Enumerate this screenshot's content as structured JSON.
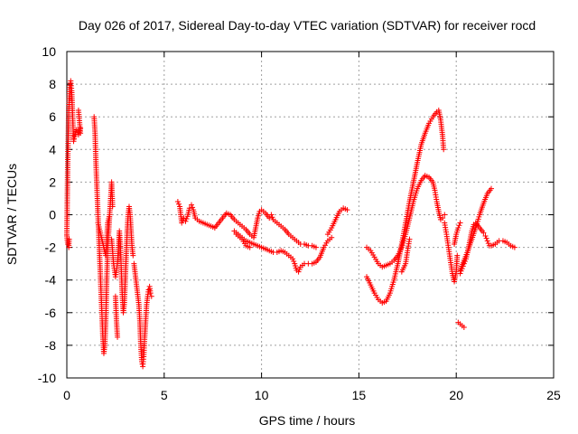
{
  "chart_data": {
    "type": "scatter",
    "title": "Day 026 of 2017, Sidereal Day-to-day VTEC variation (SDTVAR) for receiver rocd",
    "xlabel": "GPS time / hours",
    "ylabel": "SDTVAR / TECUs",
    "xlim": [
      0,
      25
    ],
    "ylim": [
      -10,
      10
    ],
    "xticks": [
      0,
      5,
      10,
      15,
      20,
      25
    ],
    "yticks": [
      -10,
      -8,
      -6,
      -4,
      -2,
      0,
      2,
      4,
      6,
      8,
      10
    ],
    "grid": true,
    "marker": "+",
    "color": "#ff0000",
    "series": [
      {
        "name": "SDTVAR",
        "segments": [
          [
            [
              0.0,
              -1.2
            ],
            [
              0.05,
              3.5
            ],
            [
              0.1,
              6.5
            ],
            [
              0.15,
              7.8
            ],
            [
              0.2,
              8.2
            ],
            [
              0.25,
              7.6
            ],
            [
              0.3,
              6.0
            ],
            [
              0.35,
              4.5
            ],
            [
              0.4,
              4.8
            ],
            [
              0.5,
              5.2
            ],
            [
              0.6,
              4.9
            ],
            [
              0.7,
              5.3
            ]
          ],
          [
            [
              0.0,
              -1.3
            ],
            [
              0.05,
              -1.8
            ],
            [
              0.1,
              -2.0
            ],
            [
              0.12,
              -1.5
            ]
          ],
          [
            [
              0.6,
              6.4
            ],
            [
              0.7,
              5.0
            ]
          ],
          [
            [
              1.4,
              6.0
            ],
            [
              1.45,
              5.0
            ],
            [
              1.5,
              3.0
            ],
            [
              1.55,
              1.5
            ],
            [
              1.6,
              0.0
            ],
            [
              1.65,
              -1.5
            ],
            [
              1.7,
              -3.0
            ],
            [
              1.75,
              -4.5
            ],
            [
              1.8,
              -6.0
            ],
            [
              1.85,
              -7.5
            ],
            [
              1.9,
              -8.5
            ],
            [
              1.95,
              -8.0
            ],
            [
              2.0,
              -6.5
            ],
            [
              2.05,
              -4.0
            ],
            [
              2.1,
              -2.0
            ],
            [
              2.15,
              -1.0
            ],
            [
              2.2,
              0.0
            ],
            [
              2.25,
              1.0
            ],
            [
              2.3,
              2.0
            ],
            [
              2.35,
              0.5
            ]
          ],
          [
            [
              1.6,
              -0.5
            ],
            [
              1.7,
              -1.0
            ],
            [
              1.8,
              -1.5
            ],
            [
              1.9,
              -2.0
            ],
            [
              2.0,
              -2.5
            ],
            [
              2.05,
              -1.5
            ],
            [
              2.1,
              -0.5
            ],
            [
              2.2,
              0.0
            ]
          ],
          [
            [
              2.3,
              -1.5
            ],
            [
              2.4,
              -3.0
            ],
            [
              2.5,
              -3.8
            ],
            [
              2.6,
              -3.0
            ],
            [
              2.65,
              -2.0
            ],
            [
              2.7,
              -1.0
            ],
            [
              2.75,
              -1.8
            ],
            [
              2.8,
              -3.5
            ],
            [
              2.85,
              -5.0
            ],
            [
              2.9,
              -6.0
            ],
            [
              2.95,
              -5.5
            ],
            [
              3.0,
              -4.0
            ],
            [
              3.05,
              -2.5
            ],
            [
              3.1,
              -1.0
            ],
            [
              3.15,
              0.0
            ],
            [
              3.2,
              0.5
            ],
            [
              3.25,
              0.0
            ],
            [
              3.3,
              -1.0
            ],
            [
              3.35,
              -2.0
            ],
            [
              3.4,
              -2.5
            ]
          ],
          [
            [
              2.5,
              -5.0
            ],
            [
              2.55,
              -6.5
            ],
            [
              2.6,
              -7.5
            ]
          ],
          [
            [
              3.45,
              -3.0
            ],
            [
              3.5,
              -3.5
            ],
            [
              3.55,
              -4.0
            ],
            [
              3.6,
              -4.5
            ],
            [
              3.65,
              -5.0
            ],
            [
              3.7,
              -5.5
            ],
            [
              3.75,
              -6.5
            ],
            [
              3.8,
              -8.0
            ],
            [
              3.85,
              -9.0
            ],
            [
              3.9,
              -9.3
            ],
            [
              3.95,
              -8.7
            ],
            [
              4.0,
              -7.5
            ],
            [
              4.05,
              -6.5
            ],
            [
              4.1,
              -5.5
            ],
            [
              4.15,
              -5.0
            ],
            [
              4.2,
              -4.6
            ],
            [
              4.25,
              -4.4
            ],
            [
              4.3,
              -4.8
            ],
            [
              4.35,
              -5.0
            ]
          ],
          [
            [
              5.7,
              0.8
            ],
            [
              5.8,
              0.5
            ],
            [
              5.9,
              -0.5
            ],
            [
              6.0,
              -0.2
            ],
            [
              6.1,
              -0.4
            ],
            [
              6.2,
              -0.1
            ],
            [
              6.3,
              0.4
            ],
            [
              6.4,
              0.6
            ],
            [
              6.5,
              0.3
            ],
            [
              6.6,
              -0.2
            ],
            [
              6.8,
              -0.4
            ],
            [
              7.0,
              -0.5
            ],
            [
              7.2,
              -0.6
            ],
            [
              7.4,
              -0.7
            ],
            [
              7.6,
              -0.8
            ],
            [
              7.8,
              -0.5
            ],
            [
              8.0,
              -0.2
            ],
            [
              8.2,
              0.1
            ],
            [
              8.4,
              0.0
            ],
            [
              8.6,
              -0.3
            ],
            [
              8.8,
              -0.5
            ],
            [
              9.0,
              -0.7
            ],
            [
              9.2,
              -0.9
            ],
            [
              9.4,
              -1.2
            ],
            [
              9.6,
              -1.4
            ],
            [
              9.7,
              -0.8
            ],
            [
              9.8,
              -0.2
            ],
            [
              9.9,
              0.2
            ],
            [
              10.0,
              0.3
            ],
            [
              10.2,
              0.1
            ],
            [
              10.4,
              -0.2
            ],
            [
              10.5,
              0.0
            ],
            [
              10.6,
              -0.3
            ],
            [
              10.8,
              -0.5
            ],
            [
              11.0,
              -0.7
            ],
            [
              11.2,
              -0.9
            ],
            [
              11.4,
              -1.2
            ],
            [
              11.6,
              -1.4
            ],
            [
              11.8,
              -1.6
            ],
            [
              12.0,
              -1.8
            ],
            [
              12.2,
              -1.8
            ],
            [
              12.4,
              -1.9
            ],
            [
              12.6,
              -1.9
            ],
            [
              12.8,
              -2.0
            ]
          ],
          [
            [
              8.6,
              -1.0
            ],
            [
              8.8,
              -1.2
            ],
            [
              9.0,
              -1.4
            ],
            [
              9.2,
              -1.6
            ],
            [
              9.4,
              -1.7
            ],
            [
              9.6,
              -1.8
            ],
            [
              9.8,
              -1.9
            ],
            [
              10.0,
              -2.0
            ],
            [
              10.2,
              -2.1
            ],
            [
              10.4,
              -2.2
            ],
            [
              10.6,
              -2.3
            ],
            [
              10.8,
              -2.3
            ],
            [
              11.0,
              -2.2
            ],
            [
              11.2,
              -2.3
            ],
            [
              11.4,
              -2.5
            ],
            [
              11.6,
              -2.7
            ],
            [
              11.7,
              -3.0
            ],
            [
              11.8,
              -3.4
            ],
            [
              11.9,
              -3.5
            ],
            [
              12.0,
              -3.2
            ],
            [
              12.2,
              -3.0
            ],
            [
              12.4,
              -3.0
            ],
            [
              12.6,
              -3.0
            ],
            [
              12.8,
              -2.9
            ],
            [
              13.0,
              -2.6
            ],
            [
              13.2,
              -2.0
            ],
            [
              13.4,
              -1.6
            ],
            [
              13.6,
              -1.4
            ]
          ],
          [
            [
              8.7,
              -1.2
            ],
            [
              9.0,
              -1.5
            ],
            [
              9.2,
              -1.9
            ],
            [
              9.4,
              -2.0
            ]
          ],
          [
            [
              13.4,
              -1.2
            ],
            [
              13.6,
              -0.8
            ],
            [
              13.8,
              -0.3
            ],
            [
              14.0,
              0.2
            ],
            [
              14.2,
              0.4
            ],
            [
              14.4,
              0.3
            ]
          ],
          [
            [
              15.4,
              -2.0
            ],
            [
              15.6,
              -2.2
            ],
            [
              15.8,
              -2.6
            ],
            [
              16.0,
              -3.0
            ],
            [
              16.2,
              -3.2
            ],
            [
              16.4,
              -3.1
            ],
            [
              16.6,
              -3.0
            ],
            [
              16.8,
              -2.8
            ],
            [
              17.0,
              -2.5
            ],
            [
              17.2,
              -2.0
            ],
            [
              17.4,
              -1.2
            ],
            [
              17.6,
              -0.2
            ],
            [
              17.8,
              0.8
            ],
            [
              18.0,
              1.6
            ],
            [
              18.2,
              2.1
            ],
            [
              18.4,
              2.4
            ],
            [
              18.6,
              2.3
            ],
            [
              18.8,
              2.0
            ],
            [
              18.9,
              1.5
            ],
            [
              19.0,
              0.8
            ],
            [
              19.1,
              0.2
            ],
            [
              19.2,
              -0.3
            ],
            [
              19.3,
              -0.2
            ],
            [
              19.4,
              0.0
            ]
          ],
          [
            [
              15.4,
              -3.8
            ],
            [
              15.6,
              -4.3
            ],
            [
              15.8,
              -4.8
            ],
            [
              16.0,
              -5.2
            ],
            [
              16.2,
              -5.4
            ],
            [
              16.4,
              -5.3
            ],
            [
              16.6,
              -4.8
            ],
            [
              16.8,
              -4.0
            ],
            [
              17.0,
              -3.0
            ],
            [
              17.2,
              -1.8
            ],
            [
              17.4,
              -0.5
            ],
            [
              17.6,
              0.8
            ],
            [
              17.8,
              2.0
            ],
            [
              18.0,
              3.2
            ],
            [
              18.2,
              4.3
            ],
            [
              18.4,
              5.0
            ],
            [
              18.6,
              5.6
            ],
            [
              18.8,
              6.0
            ],
            [
              19.0,
              6.3
            ],
            [
              19.1,
              6.4
            ],
            [
              19.2,
              5.8
            ],
            [
              19.3,
              4.8
            ],
            [
              19.35,
              4.0
            ]
          ],
          [
            [
              17.2,
              -3.5
            ],
            [
              17.4,
              -3.0
            ],
            [
              17.5,
              -2.2
            ],
            [
              17.6,
              -1.5
            ]
          ],
          [
            [
              19.4,
              -0.5
            ],
            [
              19.5,
              -1.2
            ],
            [
              19.6,
              -2.0
            ],
            [
              19.7,
              -2.8
            ],
            [
              19.8,
              -3.6
            ],
            [
              19.9,
              -4.1
            ],
            [
              20.0,
              -3.5
            ],
            [
              20.05,
              -2.5
            ]
          ],
          [
            [
              20.1,
              -6.6
            ],
            [
              20.2,
              -6.7
            ],
            [
              20.3,
              -6.8
            ],
            [
              20.4,
              -6.9
            ]
          ],
          [
            [
              20.2,
              -3.6
            ],
            [
              20.3,
              -3.3
            ],
            [
              20.4,
              -3.0
            ],
            [
              20.5,
              -2.7
            ],
            [
              20.6,
              -2.2
            ],
            [
              20.7,
              -1.6
            ],
            [
              20.8,
              -1.0
            ],
            [
              20.9,
              -0.6
            ],
            [
              21.0,
              -0.5
            ],
            [
              21.2,
              -0.8
            ],
            [
              21.4,
              -1.1
            ],
            [
              21.5,
              -1.3
            ],
            [
              21.6,
              -1.6
            ],
            [
              21.7,
              -1.9
            ],
            [
              21.8,
              -1.9
            ],
            [
              22.0,
              -1.8
            ],
            [
              22.2,
              -1.6
            ],
            [
              22.4,
              -1.6
            ],
            [
              22.6,
              -1.7
            ],
            [
              22.8,
              -1.9
            ],
            [
              23.0,
              -2.0
            ]
          ],
          [
            [
              20.2,
              -3.4
            ],
            [
              20.4,
              -2.8
            ],
            [
              20.6,
              -2.2
            ],
            [
              20.8,
              -1.5
            ],
            [
              21.0,
              -0.8
            ],
            [
              21.2,
              0.0
            ],
            [
              21.4,
              0.7
            ],
            [
              21.6,
              1.3
            ],
            [
              21.8,
              1.6
            ]
          ],
          [
            [
              19.9,
              -1.8
            ],
            [
              20.0,
              -1.2
            ],
            [
              20.1,
              -0.8
            ],
            [
              20.2,
              -0.5
            ]
          ]
        ]
      }
    ]
  }
}
